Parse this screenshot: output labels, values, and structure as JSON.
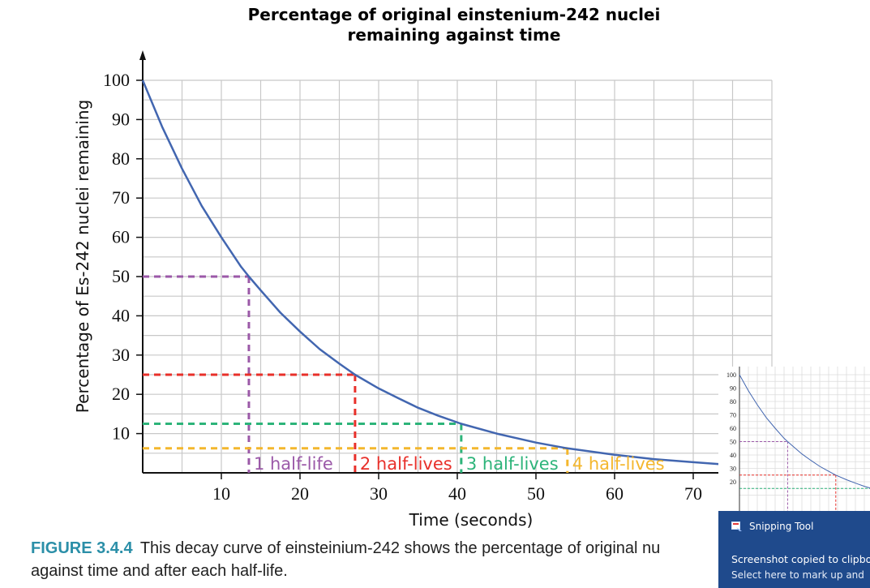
{
  "chart_data": {
    "type": "line",
    "title": [
      "Percentage of original einstenium-242 nuclei",
      "remaining against time"
    ],
    "xlabel": "Time (seconds)",
    "ylabel": "Percentage of Es-242 nuclei remaining",
    "xlim": [
      0,
      80
    ],
    "ylim": [
      0,
      100
    ],
    "x_ticks": [
      10,
      20,
      30,
      40,
      50,
      60,
      70
    ],
    "y_ticks": [
      10,
      20,
      30,
      40,
      50,
      60,
      70,
      80,
      90,
      100
    ],
    "grid": true,
    "curve": {
      "color": "#4266b0",
      "points": [
        [
          0,
          100
        ],
        [
          2.5,
          88
        ],
        [
          5,
          77.5
        ],
        [
          7.5,
          68
        ],
        [
          10,
          60
        ],
        [
          12.5,
          52.5
        ],
        [
          13.5,
          50
        ],
        [
          15,
          46.5
        ],
        [
          17.5,
          40.8
        ],
        [
          20,
          36
        ],
        [
          22.5,
          31.5
        ],
        [
          25,
          27.8
        ],
        [
          27,
          25
        ],
        [
          30,
          21.5
        ],
        [
          32.5,
          19
        ],
        [
          35,
          16.6
        ],
        [
          37.5,
          14.6
        ],
        [
          40.5,
          12.5
        ],
        [
          45,
          10
        ],
        [
          50,
          7.7
        ],
        [
          54,
          6.25
        ],
        [
          60,
          4.6
        ],
        [
          65,
          3.5
        ],
        [
          70,
          2.7
        ],
        [
          73.5,
          2.2
        ]
      ]
    },
    "half_life_markers": [
      {
        "label": "1 half-life",
        "t": 13.5,
        "percent": 50,
        "color": "#9b59a8"
      },
      {
        "label": "2 half-lives",
        "t": 27,
        "percent": 25,
        "color": "#e8302a"
      },
      {
        "label": "3 half-lives",
        "t": 40.5,
        "percent": 12.5,
        "color": "#2db47a"
      },
      {
        "label": "4 half-lives",
        "t": 54,
        "percent": 6.25,
        "color": "#f4b72d"
      }
    ]
  },
  "caption": {
    "figure_label": "FIGURE 3.4.4",
    "text": "This decay curve of einsteinium-242 shows the percentage of original nu",
    "text2": "against time and after each half-life."
  },
  "thumbnail": {
    "y_ticks": [
      "100",
      "90",
      "80",
      "70",
      "60",
      "50",
      "40",
      "30",
      "20"
    ]
  },
  "toast": {
    "app_name": "Snipping Tool",
    "line1": "Screenshot copied to clipbo",
    "line2": "Select here to mark up and"
  }
}
